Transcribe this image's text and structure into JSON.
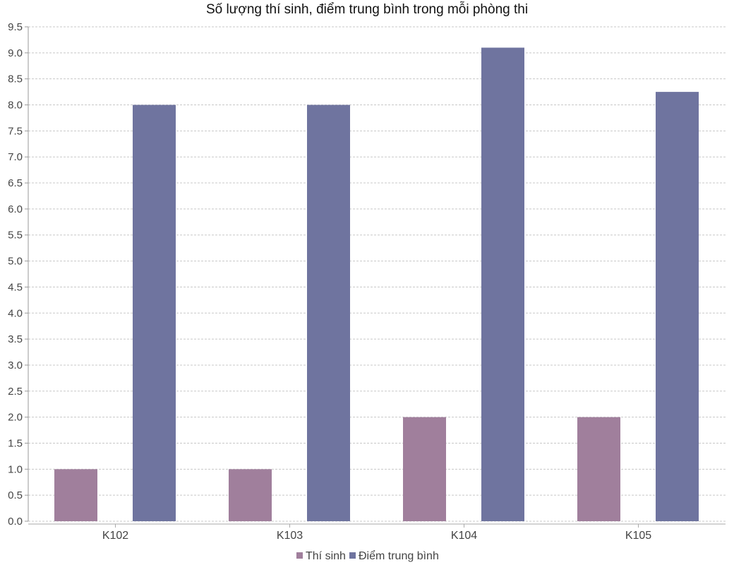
{
  "chart_data": {
    "type": "bar",
    "title": "Số lượng thí sinh, điểm trung bình trong mỗi phòng thi",
    "categories": [
      "K102",
      "K103",
      "K104",
      "K105"
    ],
    "series": [
      {
        "name": "Thí sinh",
        "values": [
          1,
          1,
          2,
          2
        ],
        "color": "#a07f9c"
      },
      {
        "name": "Điểm trung bình",
        "values": [
          8.0,
          8.0,
          9.1,
          8.25
        ],
        "color": "#6f749f"
      }
    ],
    "ylim": [
      0,
      9.5
    ],
    "y_ticks": [
      "0.0",
      "0.5",
      "1.0",
      "1.5",
      "2.0",
      "2.5",
      "3.0",
      "3.5",
      "4.0",
      "4.5",
      "5.0",
      "5.5",
      "6.0",
      "6.5",
      "7.0",
      "7.5",
      "8.0",
      "8.5",
      "9.0",
      "9.5"
    ],
    "xlabel": "",
    "ylabel": "",
    "grid": true,
    "legend_position": "bottom"
  }
}
